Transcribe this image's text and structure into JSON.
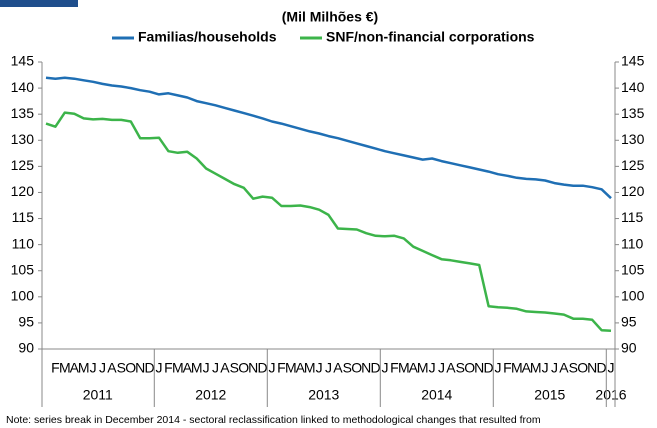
{
  "chart_data": {
    "type": "line",
    "title": "(Mil Milhões €)",
    "categories": [
      null,
      "F",
      "M",
      "A",
      "M",
      "J",
      "J",
      "A",
      "S",
      "O",
      "N",
      "D",
      "J",
      "F",
      "M",
      "A",
      "M",
      "J",
      "J",
      "A",
      "S",
      "O",
      "N",
      "D",
      "J",
      "F",
      "M",
      "A",
      "M",
      "J",
      "J",
      "A",
      "S",
      "O",
      "N",
      "D",
      "J",
      "F",
      "M",
      "A",
      "M",
      "J",
      "J",
      "A",
      "S",
      "O",
      "N",
      "D",
      "J",
      "F",
      "M",
      "A",
      "M",
      "J",
      "J",
      "A",
      "S",
      "O",
      "N",
      "D",
      "J"
    ],
    "years": [
      "2011",
      "2012",
      "2013",
      "2014",
      "2015",
      "2016"
    ],
    "series": [
      {
        "name": "Familias/households",
        "color": "#1f6fb4",
        "values": [
          142,
          141.8,
          142,
          141.8,
          141.5,
          141.2,
          140.8,
          140.5,
          140.3,
          140,
          139.6,
          139.3,
          138.8,
          139,
          138.6,
          138.2,
          137.5,
          137.1,
          136.7,
          136.2,
          135.7,
          135.2,
          134.7,
          134.2,
          133.6,
          133.2,
          132.7,
          132.2,
          131.7,
          131.3,
          130.8,
          130.4,
          129.9,
          129.4,
          128.9,
          128.4,
          127.9,
          127.5,
          127.1,
          126.7,
          126.3,
          126.5,
          126.0,
          125.6,
          125.2,
          124.8,
          124.4,
          124.0,
          123.5,
          123.2,
          122.8,
          122.6,
          122.5,
          122.3,
          121.8,
          121.5,
          121.3,
          121.3,
          121,
          120.6,
          118.9
        ]
      },
      {
        "name": "SNF/non-financial corporations",
        "color": "#3cb44a",
        "values": [
          133.2,
          132.6,
          135.3,
          135.1,
          134.2,
          134,
          134.1,
          133.9,
          133.9,
          133.6,
          130.4,
          130.4,
          130.5,
          127.9,
          127.6,
          127.8,
          126.5,
          124.6,
          123.6,
          122.6,
          121.6,
          120.9,
          118.8,
          119.2,
          119.0,
          117.4,
          117.4,
          117.5,
          117.2,
          116.7,
          115.7,
          113.1,
          113.0,
          112.9,
          112.2,
          111.7,
          111.6,
          111.7,
          111.2,
          109.6,
          108.8,
          108.0,
          107.2,
          107.0,
          106.7,
          106.4,
          106.1,
          98.2,
          98.0,
          97.9,
          97.7,
          97.2,
          97.1,
          97.0,
          96.8,
          96.6,
          95.8,
          95.8,
          95.6,
          93.6,
          93.5
        ]
      }
    ],
    "ylim": [
      90,
      145
    ],
    "yticks": [
      90,
      95,
      100,
      105,
      110,
      115,
      120,
      125,
      130,
      135,
      140,
      145
    ],
    "grid": false,
    "note": "Note: series break in December 2014 - sectoral reclassification linked to methodological changes that resulted from"
  }
}
